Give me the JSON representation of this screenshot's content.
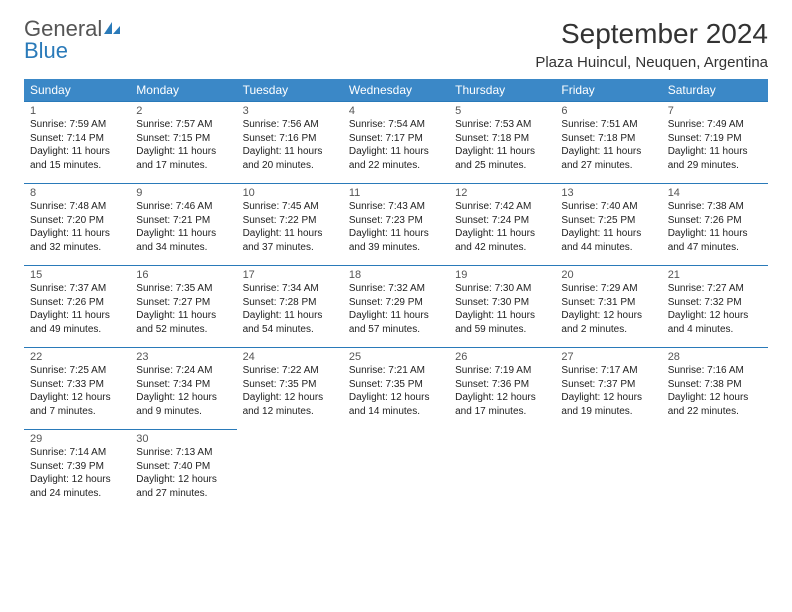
{
  "brand": {
    "name1": "General",
    "name2": "Blue"
  },
  "title": "September 2024",
  "location": "Plaza Huincul, Neuquen, Argentina",
  "colors": {
    "header_bg": "#3b88c7",
    "border": "#2a7ab9",
    "text": "#222222",
    "muted": "#555555",
    "bg": "#ffffff"
  },
  "daysOfWeek": [
    "Sunday",
    "Monday",
    "Tuesday",
    "Wednesday",
    "Thursday",
    "Friday",
    "Saturday"
  ],
  "firstDayOffset": 0,
  "cellHeight": 82,
  "days": [
    {
      "n": 1,
      "sunrise": "Sunrise: 7:59 AM",
      "sunset": "Sunset: 7:14 PM",
      "d1": "Daylight: 11 hours",
      "d2": "and 15 minutes."
    },
    {
      "n": 2,
      "sunrise": "Sunrise: 7:57 AM",
      "sunset": "Sunset: 7:15 PM",
      "d1": "Daylight: 11 hours",
      "d2": "and 17 minutes."
    },
    {
      "n": 3,
      "sunrise": "Sunrise: 7:56 AM",
      "sunset": "Sunset: 7:16 PM",
      "d1": "Daylight: 11 hours",
      "d2": "and 20 minutes."
    },
    {
      "n": 4,
      "sunrise": "Sunrise: 7:54 AM",
      "sunset": "Sunset: 7:17 PM",
      "d1": "Daylight: 11 hours",
      "d2": "and 22 minutes."
    },
    {
      "n": 5,
      "sunrise": "Sunrise: 7:53 AM",
      "sunset": "Sunset: 7:18 PM",
      "d1": "Daylight: 11 hours",
      "d2": "and 25 minutes."
    },
    {
      "n": 6,
      "sunrise": "Sunrise: 7:51 AM",
      "sunset": "Sunset: 7:18 PM",
      "d1": "Daylight: 11 hours",
      "d2": "and 27 minutes."
    },
    {
      "n": 7,
      "sunrise": "Sunrise: 7:49 AM",
      "sunset": "Sunset: 7:19 PM",
      "d1": "Daylight: 11 hours",
      "d2": "and 29 minutes."
    },
    {
      "n": 8,
      "sunrise": "Sunrise: 7:48 AM",
      "sunset": "Sunset: 7:20 PM",
      "d1": "Daylight: 11 hours",
      "d2": "and 32 minutes."
    },
    {
      "n": 9,
      "sunrise": "Sunrise: 7:46 AM",
      "sunset": "Sunset: 7:21 PM",
      "d1": "Daylight: 11 hours",
      "d2": "and 34 minutes."
    },
    {
      "n": 10,
      "sunrise": "Sunrise: 7:45 AM",
      "sunset": "Sunset: 7:22 PM",
      "d1": "Daylight: 11 hours",
      "d2": "and 37 minutes."
    },
    {
      "n": 11,
      "sunrise": "Sunrise: 7:43 AM",
      "sunset": "Sunset: 7:23 PM",
      "d1": "Daylight: 11 hours",
      "d2": "and 39 minutes."
    },
    {
      "n": 12,
      "sunrise": "Sunrise: 7:42 AM",
      "sunset": "Sunset: 7:24 PM",
      "d1": "Daylight: 11 hours",
      "d2": "and 42 minutes."
    },
    {
      "n": 13,
      "sunrise": "Sunrise: 7:40 AM",
      "sunset": "Sunset: 7:25 PM",
      "d1": "Daylight: 11 hours",
      "d2": "and 44 minutes."
    },
    {
      "n": 14,
      "sunrise": "Sunrise: 7:38 AM",
      "sunset": "Sunset: 7:26 PM",
      "d1": "Daylight: 11 hours",
      "d2": "and 47 minutes."
    },
    {
      "n": 15,
      "sunrise": "Sunrise: 7:37 AM",
      "sunset": "Sunset: 7:26 PM",
      "d1": "Daylight: 11 hours",
      "d2": "and 49 minutes."
    },
    {
      "n": 16,
      "sunrise": "Sunrise: 7:35 AM",
      "sunset": "Sunset: 7:27 PM",
      "d1": "Daylight: 11 hours",
      "d2": "and 52 minutes."
    },
    {
      "n": 17,
      "sunrise": "Sunrise: 7:34 AM",
      "sunset": "Sunset: 7:28 PM",
      "d1": "Daylight: 11 hours",
      "d2": "and 54 minutes."
    },
    {
      "n": 18,
      "sunrise": "Sunrise: 7:32 AM",
      "sunset": "Sunset: 7:29 PM",
      "d1": "Daylight: 11 hours",
      "d2": "and 57 minutes."
    },
    {
      "n": 19,
      "sunrise": "Sunrise: 7:30 AM",
      "sunset": "Sunset: 7:30 PM",
      "d1": "Daylight: 11 hours",
      "d2": "and 59 minutes."
    },
    {
      "n": 20,
      "sunrise": "Sunrise: 7:29 AM",
      "sunset": "Sunset: 7:31 PM",
      "d1": "Daylight: 12 hours",
      "d2": "and 2 minutes."
    },
    {
      "n": 21,
      "sunrise": "Sunrise: 7:27 AM",
      "sunset": "Sunset: 7:32 PM",
      "d1": "Daylight: 12 hours",
      "d2": "and 4 minutes."
    },
    {
      "n": 22,
      "sunrise": "Sunrise: 7:25 AM",
      "sunset": "Sunset: 7:33 PM",
      "d1": "Daylight: 12 hours",
      "d2": "and 7 minutes."
    },
    {
      "n": 23,
      "sunrise": "Sunrise: 7:24 AM",
      "sunset": "Sunset: 7:34 PM",
      "d1": "Daylight: 12 hours",
      "d2": "and 9 minutes."
    },
    {
      "n": 24,
      "sunrise": "Sunrise: 7:22 AM",
      "sunset": "Sunset: 7:35 PM",
      "d1": "Daylight: 12 hours",
      "d2": "and 12 minutes."
    },
    {
      "n": 25,
      "sunrise": "Sunrise: 7:21 AM",
      "sunset": "Sunset: 7:35 PM",
      "d1": "Daylight: 12 hours",
      "d2": "and 14 minutes."
    },
    {
      "n": 26,
      "sunrise": "Sunrise: 7:19 AM",
      "sunset": "Sunset: 7:36 PM",
      "d1": "Daylight: 12 hours",
      "d2": "and 17 minutes."
    },
    {
      "n": 27,
      "sunrise": "Sunrise: 7:17 AM",
      "sunset": "Sunset: 7:37 PM",
      "d1": "Daylight: 12 hours",
      "d2": "and 19 minutes."
    },
    {
      "n": 28,
      "sunrise": "Sunrise: 7:16 AM",
      "sunset": "Sunset: 7:38 PM",
      "d1": "Daylight: 12 hours",
      "d2": "and 22 minutes."
    },
    {
      "n": 29,
      "sunrise": "Sunrise: 7:14 AM",
      "sunset": "Sunset: 7:39 PM",
      "d1": "Daylight: 12 hours",
      "d2": "and 24 minutes."
    },
    {
      "n": 30,
      "sunrise": "Sunrise: 7:13 AM",
      "sunset": "Sunset: 7:40 PM",
      "d1": "Daylight: 12 hours",
      "d2": "and 27 minutes."
    }
  ]
}
